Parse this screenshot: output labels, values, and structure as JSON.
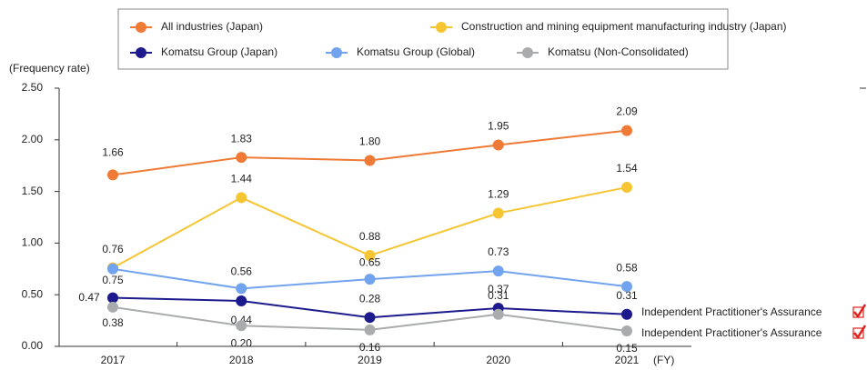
{
  "chart_data": {
    "type": "line",
    "y_label": "(Frequency rate)",
    "x_label": "(FY)",
    "categories": [
      "2017",
      "2018",
      "2019",
      "2020",
      "2021"
    ],
    "series": [
      {
        "name": "All industries (Japan)",
        "color": "#ee7a35",
        "values": [
          1.66,
          1.83,
          1.8,
          1.95,
          2.09
        ],
        "value_labels": [
          "1.66",
          "1.83",
          "1.80",
          "1.95",
          "2.09"
        ]
      },
      {
        "name": "Construction and mining equipment manufacturing industry (Japan)",
        "color": "#f6c533",
        "values": [
          0.76,
          1.44,
          0.88,
          1.29,
          1.54
        ],
        "value_labels": [
          "0.76",
          "1.44",
          "0.88",
          "1.29",
          "1.54"
        ]
      },
      {
        "name": "Komatsu Group (Japan)",
        "color": "#1c1a8c",
        "values": [
          0.47,
          0.44,
          0.28,
          0.37,
          0.31
        ],
        "value_labels": [
          "0.47",
          "0.44",
          "0.28",
          "0.37",
          "0.31"
        ]
      },
      {
        "name": "Komatsu Group (Global)",
        "color": "#72a3ee",
        "values": [
          0.75,
          0.56,
          0.65,
          0.73,
          0.58
        ],
        "value_labels": [
          "0.75",
          "0.56",
          "0.65",
          "0.73",
          "0.58"
        ]
      },
      {
        "name": "Komatsu (Non-Consolidated)",
        "color": "#a9abad",
        "values": [
          0.38,
          0.2,
          0.16,
          0.31,
          0.15
        ],
        "value_labels": [
          "0.38",
          "0.20",
          "0.16",
          "0.31",
          "0.15"
        ]
      }
    ],
    "ylim": [
      0,
      2.5
    ],
    "yticks": [
      {
        "value": 0,
        "label": "0.00"
      },
      {
        "value": 0.5,
        "label": "0.50"
      },
      {
        "value": 1,
        "label": "1.00"
      },
      {
        "value": 1.5,
        "label": "1.50"
      },
      {
        "value": 2,
        "label": "2.00"
      },
      {
        "value": 2.5,
        "label": "2.50"
      }
    ],
    "annotations": [
      "Independent Practitioner's Assurance",
      "Independent Practitioner's Assurance"
    ]
  }
}
